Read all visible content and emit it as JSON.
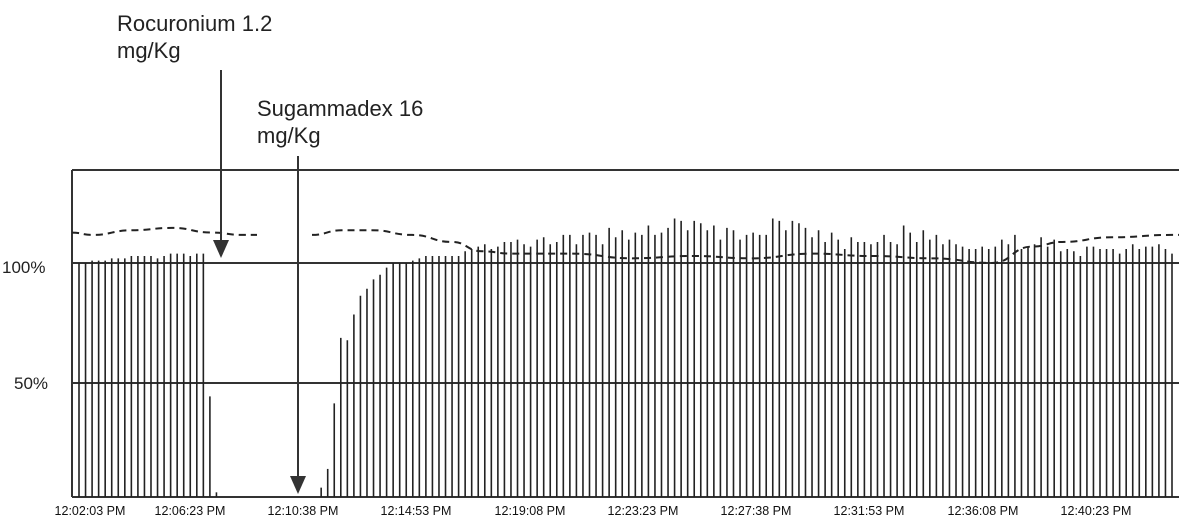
{
  "chart_data": {
    "type": "bar",
    "y_unit": "%",
    "ylim": [
      0,
      140
    ],
    "y_ticks": [
      {
        "value": 100,
        "label": "100%"
      },
      {
        "value": 50,
        "label": "50%"
      }
    ],
    "x_ticks": [
      "12:02:03 PM",
      "12:06:23 PM",
      "12:10:38 PM",
      "12:14:53 PM",
      "12:19:08 PM",
      "12:23:23 PM",
      "12:27:38 PM",
      "12:31:53 PM",
      "12:36:08 PM",
      "12:40:23 PM"
    ],
    "annotations": [
      {
        "id": "rocuronium",
        "line1": "Rocuronium 1.2",
        "line2": "mg/Kg"
      },
      {
        "id": "sugammadex",
        "line1": "Sugammadex 16",
        "line2": "mg/Kg"
      }
    ],
    "twitch_heights": [
      100,
      100,
      101,
      101,
      101,
      102,
      102,
      102,
      103,
      103,
      103,
      103,
      102,
      103,
      104,
      104,
      104,
      103,
      104,
      104,
      43,
      2,
      null,
      null,
      null,
      null,
      null,
      null,
      null,
      null,
      null,
      null,
      null,
      null,
      null,
      null,
      null,
      4,
      12,
      40,
      68,
      67,
      78,
      86,
      89,
      93,
      95,
      98,
      100,
      100,
      100,
      101,
      102,
      103,
      103,
      103,
      103,
      103,
      103,
      105,
      106,
      107,
      108,
      106,
      107,
      109,
      109,
      110,
      108,
      107,
      110,
      111,
      108,
      109,
      112,
      112,
      108,
      112,
      113,
      112,
      108,
      115,
      111,
      114,
      110,
      113,
      112,
      116,
      112,
      113,
      115,
      119,
      118,
      114,
      118,
      117,
      114,
      116,
      110,
      115,
      114,
      110,
      112,
      113,
      112,
      112,
      119,
      118,
      114,
      118,
      117,
      115,
      111,
      114,
      109,
      113,
      110,
      106,
      111,
      109,
      109,
      108,
      109,
      112,
      109,
      108,
      116,
      113,
      109,
      114,
      110,
      112,
      108,
      110,
      108,
      107,
      106,
      106,
      107,
      106,
      107,
      110,
      108,
      112,
      106,
      107,
      108,
      111,
      107,
      110,
      105,
      106,
      105,
      103,
      107,
      107,
      106,
      106,
      106,
      104,
      106,
      108,
      106,
      107,
      107,
      108,
      106,
      104
    ],
    "baseline_series": [
      [
        0,
        113
      ],
      [
        20,
        112
      ],
      [
        60,
        114
      ],
      [
        100,
        115
      ],
      [
        140,
        113
      ],
      [
        170,
        112
      ],
      [
        185,
        112
      ],
      [
        240,
        112
      ],
      [
        270,
        114
      ],
      [
        300,
        114
      ],
      [
        340,
        112
      ],
      [
        380,
        109
      ],
      [
        410,
        105
      ],
      [
        440,
        104
      ],
      [
        500,
        104
      ],
      [
        560,
        102
      ],
      [
        620,
        103
      ],
      [
        680,
        102
      ],
      [
        740,
        104
      ],
      [
        800,
        103
      ],
      [
        860,
        102
      ],
      [
        920,
        100
      ],
      [
        960,
        107
      ],
      [
        990,
        109
      ],
      [
        1040,
        111
      ],
      [
        1100,
        112
      ],
      [
        1150,
        112
      ],
      [
        1178,
        106
      ]
    ]
  }
}
